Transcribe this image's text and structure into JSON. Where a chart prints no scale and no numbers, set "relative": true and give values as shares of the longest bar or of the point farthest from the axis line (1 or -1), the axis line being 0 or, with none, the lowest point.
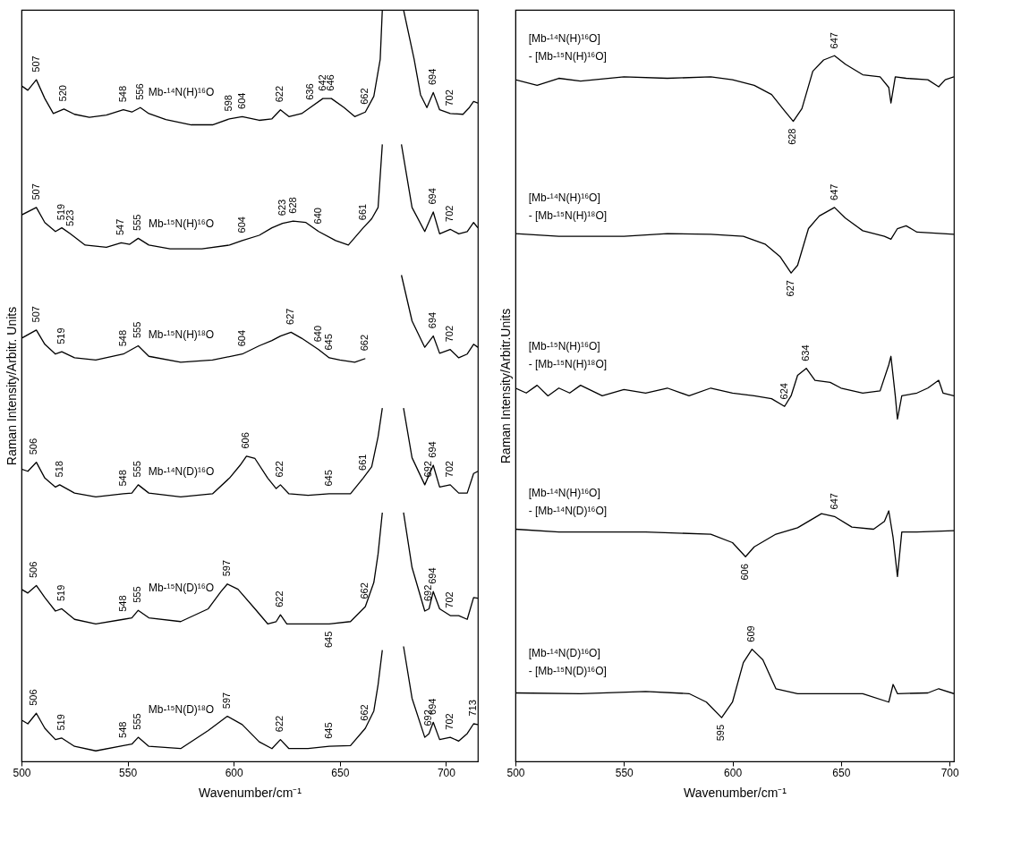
{
  "chart_data": [
    {
      "type": "line",
      "relative": true,
      "xlabel": "Wavenumber/cm⁻¹",
      "ylabel": "Raman Intensity/Arbitr. Units",
      "xlim": [
        500,
        715
      ],
      "xticks": [
        500,
        550,
        600,
        650,
        700
      ],
      "grid": false,
      "legend": false,
      "marker": "none",
      "line_style": "solid",
      "series": [
        {
          "name": "Mb-¹⁴N(H)¹⁶O",
          "color": "#000000",
          "x": [
            500,
            503,
            507,
            511,
            515,
            520,
            525,
            532,
            540,
            548,
            552,
            556,
            560,
            568,
            580,
            590,
            598,
            604,
            612,
            618,
            622,
            626,
            632,
            636,
            642,
            646,
            652,
            657,
            662,
            666,
            669,
            670,
            675,
            680,
            685,
            688,
            691,
            694,
            697,
            702,
            708,
            711,
            713,
            715
          ],
          "values": [
            0.899,
            0.893,
            0.907,
            0.882,
            0.862,
            0.868,
            0.861,
            0.857,
            0.86,
            0.867,
            0.864,
            0.87,
            0.862,
            0.854,
            0.847,
            0.847,
            0.855,
            0.858,
            0.853,
            0.855,
            0.867,
            0.858,
            0.862,
            0.87,
            0.882,
            0.882,
            0.87,
            0.858,
            0.864,
            0.885,
            0.934,
            1.0,
            null,
            1.0,
            0.934,
            0.887,
            0.87,
            0.89,
            0.867,
            0.862,
            0.861,
            0.87,
            0.878,
            0.876
          ]
        },
        {
          "name": "Mb-¹⁵N(H)¹⁶O",
          "color": "#000000",
          "x": [
            500,
            507,
            511,
            516,
            519,
            523,
            530,
            540,
            547,
            551,
            555,
            560,
            570,
            585,
            598,
            604,
            612,
            618,
            623,
            628,
            634,
            640,
            648,
            654,
            661,
            665,
            668,
            670,
            675,
            679,
            684,
            690,
            694,
            697,
            702,
            706,
            710,
            713,
            715
          ],
          "values": [
            0.727,
            0.737,
            0.717,
            0.705,
            0.71,
            0.702,
            0.687,
            0.684,
            0.69,
            0.688,
            0.696,
            0.687,
            0.682,
            0.682,
            0.687,
            0.693,
            0.7,
            0.71,
            0.716,
            0.719,
            0.717,
            0.705,
            0.693,
            0.687,
            0.71,
            0.722,
            0.737,
            0.821,
            null,
            0.821,
            0.737,
            0.705,
            0.731,
            0.702,
            0.708,
            0.702,
            0.705,
            0.717,
            0.71
          ]
        },
        {
          "name": "Mb-¹⁵N(H)¹⁸O",
          "color": "#000000",
          "x": [
            500,
            507,
            511,
            516,
            519,
            525,
            535,
            548,
            555,
            560,
            575,
            590,
            604,
            612,
            618,
            622,
            627,
            632,
            640,
            645,
            650,
            657,
            662,
            670,
            679,
            684,
            690,
            694,
            697,
            702,
            706,
            710,
            713,
            715
          ],
          "values": [
            0.563,
            0.574,
            0.555,
            0.542,
            0.545,
            0.537,
            0.534,
            0.542,
            0.553,
            0.539,
            0.531,
            0.534,
            0.542,
            0.553,
            0.56,
            0.566,
            0.571,
            0.563,
            0.548,
            0.537,
            0.534,
            0.531,
            0.536,
            null,
            0.647,
            0.586,
            0.551,
            0.566,
            0.543,
            0.548,
            0.537,
            0.542,
            0.555,
            0.551
          ]
        },
        {
          "name": "Mb-¹⁴N(D)¹⁶O",
          "color": "#000000",
          "x": [
            500,
            503,
            507,
            511,
            516,
            518,
            525,
            535,
            548,
            552,
            555,
            560,
            575,
            590,
            598,
            603,
            606,
            610,
            616,
            620,
            622,
            626,
            635,
            645,
            655,
            661,
            665,
            668,
            670,
            675,
            680,
            684,
            690,
            694,
            697,
            702,
            706,
            710,
            713,
            715
          ],
          "values": [
            0.389,
            0.386,
            0.398,
            0.377,
            0.365,
            0.368,
            0.357,
            0.352,
            0.356,
            0.357,
            0.368,
            0.357,
            0.352,
            0.356,
            0.377,
            0.394,
            0.406,
            0.403,
            0.377,
            0.363,
            0.368,
            0.356,
            0.354,
            0.356,
            0.356,
            0.377,
            0.392,
            0.432,
            0.47,
            null,
            0.47,
            0.404,
            0.368,
            0.394,
            0.365,
            0.368,
            0.357,
            0.357,
            0.383,
            0.386
          ]
        },
        {
          "name": "Mb-¹⁵N(D)¹⁶O",
          "color": "#000000",
          "x": [
            500,
            503,
            507,
            511,
            516,
            519,
            525,
            535,
            548,
            552,
            555,
            560,
            575,
            588,
            594,
            597,
            602,
            610,
            616,
            620,
            622,
            625,
            635,
            645,
            655,
            662,
            666,
            668,
            670,
            675,
            680,
            684,
            690,
            692,
            694,
            697,
            702,
            706,
            710,
            713,
            715
          ],
          "values": [
            0.229,
            0.224,
            0.234,
            0.218,
            0.2,
            0.203,
            0.189,
            0.183,
            0.189,
            0.191,
            0.201,
            0.191,
            0.186,
            0.203,
            0.226,
            0.236,
            0.229,
            0.203,
            0.183,
            0.186,
            0.195,
            0.183,
            0.183,
            0.183,
            0.186,
            0.206,
            0.238,
            0.276,
            0.331,
            null,
            0.331,
            0.258,
            0.2,
            0.203,
            0.226,
            0.203,
            0.194,
            0.194,
            0.189,
            0.218,
            0.217
          ]
        },
        {
          "name": "Mb-¹⁵N(D)¹⁸O",
          "color": "#000000",
          "x": [
            500,
            503,
            507,
            511,
            516,
            519,
            525,
            535,
            548,
            552,
            555,
            560,
            575,
            588,
            597,
            604,
            612,
            618,
            622,
            626,
            635,
            645,
            655,
            662,
            666,
            668,
            670,
            675,
            680,
            684,
            690,
            692,
            694,
            697,
            702,
            706,
            710,
            713,
            715
          ],
          "values": [
            0.055,
            0.05,
            0.064,
            0.044,
            0.029,
            0.031,
            0.02,
            0.014,
            0.021,
            0.023,
            0.032,
            0.02,
            0.017,
            0.041,
            0.06,
            0.049,
            0.026,
            0.017,
            0.029,
            0.017,
            0.017,
            0.02,
            0.021,
            0.044,
            0.067,
            0.102,
            0.148,
            null,
            0.153,
            0.084,
            0.032,
            0.037,
            0.052,
            0.029,
            0.032,
            0.027,
            0.037,
            0.05,
            0.049
          ]
        }
      ],
      "annotations": [
        {
          "text": "507",
          "x": 507,
          "y": 0.907
        },
        {
          "text": "520",
          "x": 520,
          "y": 0.868
        },
        {
          "text": "548",
          "x": 548,
          "y": 0.867
        },
        {
          "text": "556",
          "x": 556,
          "y": 0.87
        },
        {
          "text": "598",
          "x": 598,
          "y": 0.855
        },
        {
          "text": "604",
          "x": 604,
          "y": 0.858
        },
        {
          "text": "622",
          "x": 622,
          "y": 0.867
        },
        {
          "text": "636",
          "x": 636,
          "y": 0.87
        },
        {
          "text": "642",
          "x": 642,
          "y": 0.882
        },
        {
          "text": "646",
          "x": 646,
          "y": 0.882
        },
        {
          "text": "662",
          "x": 662,
          "y": 0.864
        },
        {
          "text": "694",
          "x": 694,
          "y": 0.89
        },
        {
          "text": "702",
          "x": 702,
          "y": 0.862
        },
        {
          "text": "507",
          "x": 507,
          "y": 0.737
        },
        {
          "text": "519",
          "x": 519,
          "y": 0.71
        },
        {
          "text": "523",
          "x": 523,
          "y": 0.702
        },
        {
          "text": "547",
          "x": 547,
          "y": 0.69
        },
        {
          "text": "555",
          "x": 555,
          "y": 0.696
        },
        {
          "text": "604",
          "x": 604,
          "y": 0.693
        },
        {
          "text": "623",
          "x": 623,
          "y": 0.716
        },
        {
          "text": "628",
          "x": 628,
          "y": 0.719
        },
        {
          "text": "640",
          "x": 640,
          "y": 0.705
        },
        {
          "text": "661",
          "x": 661,
          "y": 0.71
        },
        {
          "text": "694",
          "x": 694,
          "y": 0.731
        },
        {
          "text": "702",
          "x": 702,
          "y": 0.708
        },
        {
          "text": "507",
          "x": 507,
          "y": 0.574
        },
        {
          "text": "519",
          "x": 519,
          "y": 0.545
        },
        {
          "text": "548",
          "x": 548,
          "y": 0.542
        },
        {
          "text": "555",
          "x": 555,
          "y": 0.553
        },
        {
          "text": "604",
          "x": 604,
          "y": 0.542
        },
        {
          "text": "627",
          "x": 627,
          "y": 0.571
        },
        {
          "text": "640",
          "x": 640,
          "y": 0.548
        },
        {
          "text": "645",
          "x": 645,
          "y": 0.537
        },
        {
          "text": "662",
          "x": 662,
          "y": 0.536
        },
        {
          "text": "694",
          "x": 694,
          "y": 0.566
        },
        {
          "text": "702",
          "x": 702,
          "y": 0.548
        },
        {
          "text": "506",
          "x": 506,
          "y": 0.398
        },
        {
          "text": "518",
          "x": 518,
          "y": 0.368
        },
        {
          "text": "548",
          "x": 548,
          "y": 0.356
        },
        {
          "text": "555",
          "x": 555,
          "y": 0.368
        },
        {
          "text": "606",
          "x": 606,
          "y": 0.406
        },
        {
          "text": "622",
          "x": 622,
          "y": 0.368
        },
        {
          "text": "645",
          "x": 645,
          "y": 0.356
        },
        {
          "text": "661",
          "x": 661,
          "y": 0.377
        },
        {
          "text": "692",
          "x": 692,
          "y": 0.368
        },
        {
          "text": "694",
          "x": 694,
          "y": 0.394
        },
        {
          "text": "702",
          "x": 702,
          "y": 0.368
        },
        {
          "text": "506",
          "x": 506,
          "y": 0.234
        },
        {
          "text": "519",
          "x": 519,
          "y": 0.203
        },
        {
          "text": "548",
          "x": 548,
          "y": 0.189
        },
        {
          "text": "555",
          "x": 555,
          "y": 0.201
        },
        {
          "text": "597",
          "x": 597,
          "y": 0.236
        },
        {
          "text": "622",
          "x": 622,
          "y": 0.195
        },
        {
          "text": "645",
          "x": 645,
          "y": 0.183
        },
        {
          "text": "662",
          "x": 662,
          "y": 0.206
        },
        {
          "text": "692",
          "x": 692,
          "y": 0.203
        },
        {
          "text": "694",
          "x": 694,
          "y": 0.226
        },
        {
          "text": "702",
          "x": 702,
          "y": 0.194
        },
        {
          "text": "506",
          "x": 506,
          "y": 0.064
        },
        {
          "text": "519",
          "x": 519,
          "y": 0.031
        },
        {
          "text": "548",
          "x": 548,
          "y": 0.021
        },
        {
          "text": "555",
          "x": 555,
          "y": 0.032
        },
        {
          "text": "597",
          "x": 597,
          "y": 0.06
        },
        {
          "text": "622",
          "x": 622,
          "y": 0.029
        },
        {
          "text": "645",
          "x": 645,
          "y": 0.02
        },
        {
          "text": "662",
          "x": 662,
          "y": 0.044
        },
        {
          "text": "692",
          "x": 692,
          "y": 0.037
        },
        {
          "text": "694",
          "x": 694,
          "y": 0.052
        },
        {
          "text": "702",
          "x": 702,
          "y": 0.032
        },
        {
          "text": "713",
          "x": 713,
          "y": 0.05
        }
      ]
    },
    {
      "type": "line",
      "relative": true,
      "xlabel": "Wavenumber/cm⁻¹",
      "ylabel": "Raman Intensity/Arbitr.Units",
      "xlim": [
        500,
        702
      ],
      "xticks": [
        500,
        550,
        600,
        650,
        700
      ],
      "grid": false,
      "legend": false,
      "marker": "none",
      "line_style": "solid",
      "series": [
        {
          "name": "[Mb-¹⁴N(H)¹⁶O]\n- [Mb-¹⁵N(H)¹⁶O]",
          "color": "#000000",
          "x": [
            500,
            510,
            520,
            530,
            550,
            570,
            590,
            600,
            610,
            618,
            624,
            628,
            632,
            637,
            642,
            647,
            652,
            660,
            668,
            672,
            673,
            675,
            680,
            690,
            695,
            698,
            702
          ],
          "values": [
            0.966,
            0.958,
            0.968,
            0.964,
            0.97,
            0.968,
            0.97,
            0.966,
            0.958,
            0.945,
            0.922,
            0.907,
            0.925,
            0.978,
            0.994,
            1.0,
            0.988,
            0.973,
            0.97,
            0.955,
            0.933,
            0.97,
            0.968,
            0.966,
            0.956,
            0.966,
            0.97
          ]
        },
        {
          "name": "[Mb-¹⁴N(H)¹⁶O]\n- [Mb-¹⁵N(H)¹⁸O]",
          "color": "#000000",
          "x": [
            500,
            520,
            550,
            570,
            590,
            605,
            615,
            622,
            627,
            630,
            635,
            640,
            647,
            652,
            660,
            670,
            673,
            676,
            680,
            685,
            702
          ],
          "values": [
            0.748,
            0.744,
            0.744,
            0.748,
            0.747,
            0.744,
            0.733,
            0.715,
            0.692,
            0.703,
            0.755,
            0.773,
            0.785,
            0.77,
            0.752,
            0.744,
            0.74,
            0.755,
            0.759,
            0.75,
            0.747
          ]
        },
        {
          "name": "[Mb-¹⁵N(H)¹⁶O]\n- [Mb-¹⁵N(H)¹⁸O]",
          "color": "#000000",
          "x": [
            500,
            505,
            510,
            515,
            520,
            525,
            530,
            540,
            550,
            560,
            570,
            580,
            590,
            600,
            610,
            618,
            624,
            627,
            630,
            634,
            638,
            645,
            650,
            660,
            668,
            672,
            673,
            675,
            676,
            678,
            685,
            690,
            695,
            697,
            702
          ],
          "values": [
            0.529,
            0.522,
            0.533,
            0.518,
            0.529,
            0.522,
            0.533,
            0.518,
            0.527,
            0.522,
            0.529,
            0.518,
            0.529,
            0.522,
            0.518,
            0.514,
            0.503,
            0.518,
            0.547,
            0.557,
            0.54,
            0.537,
            0.529,
            0.522,
            0.525,
            0.562,
            0.574,
            0.518,
            0.485,
            0.518,
            0.522,
            0.529,
            0.54,
            0.522,
            0.518
          ]
        },
        {
          "name": "[Mb-¹⁴N(H)¹⁶O]\n- [Mb-¹⁴N(D)¹⁶O]",
          "color": "#000000",
          "x": [
            500,
            520,
            560,
            590,
            600,
            606,
            610,
            620,
            630,
            641,
            647,
            655,
            665,
            670,
            672,
            674,
            676,
            678,
            685,
            702
          ],
          "values": [
            0.329,
            0.325,
            0.325,
            0.322,
            0.31,
            0.29,
            0.304,
            0.322,
            0.331,
            0.351,
            0.347,
            0.332,
            0.329,
            0.34,
            0.355,
            0.317,
            0.262,
            0.325,
            0.325,
            0.327
          ]
        },
        {
          "name": "[Mb-¹⁴N(D)¹⁶O]\n- [Mb-¹⁵N(D)¹⁶O]",
          "color": "#000000",
          "x": [
            500,
            530,
            560,
            580,
            588,
            595,
            600,
            605,
            609,
            614,
            620,
            630,
            660,
            672,
            674,
            676,
            690,
            695,
            702
          ],
          "values": [
            0.097,
            0.096,
            0.099,
            0.096,
            0.084,
            0.062,
            0.084,
            0.14,
            0.159,
            0.144,
            0.103,
            0.096,
            0.096,
            0.084,
            0.109,
            0.096,
            0.097,
            0.103,
            0.096
          ]
        }
      ],
      "annotations": [
        {
          "text": "647",
          "x": 647,
          "y": 1.0
        },
        {
          "text": "628",
          "x": 628,
          "y": 0.907
        },
        {
          "text": "647",
          "x": 647,
          "y": 0.785
        },
        {
          "text": "627",
          "x": 627,
          "y": 0.692
        },
        {
          "text": "634",
          "x": 634,
          "y": 0.557
        },
        {
          "text": "624",
          "x": 624,
          "y": 0.503
        },
        {
          "text": "647",
          "x": 647,
          "y": 0.347
        },
        {
          "text": "606",
          "x": 606,
          "y": 0.29
        },
        {
          "text": "609",
          "x": 609,
          "y": 0.159
        },
        {
          "text": "595",
          "x": 595,
          "y": 0.062
        }
      ]
    }
  ]
}
